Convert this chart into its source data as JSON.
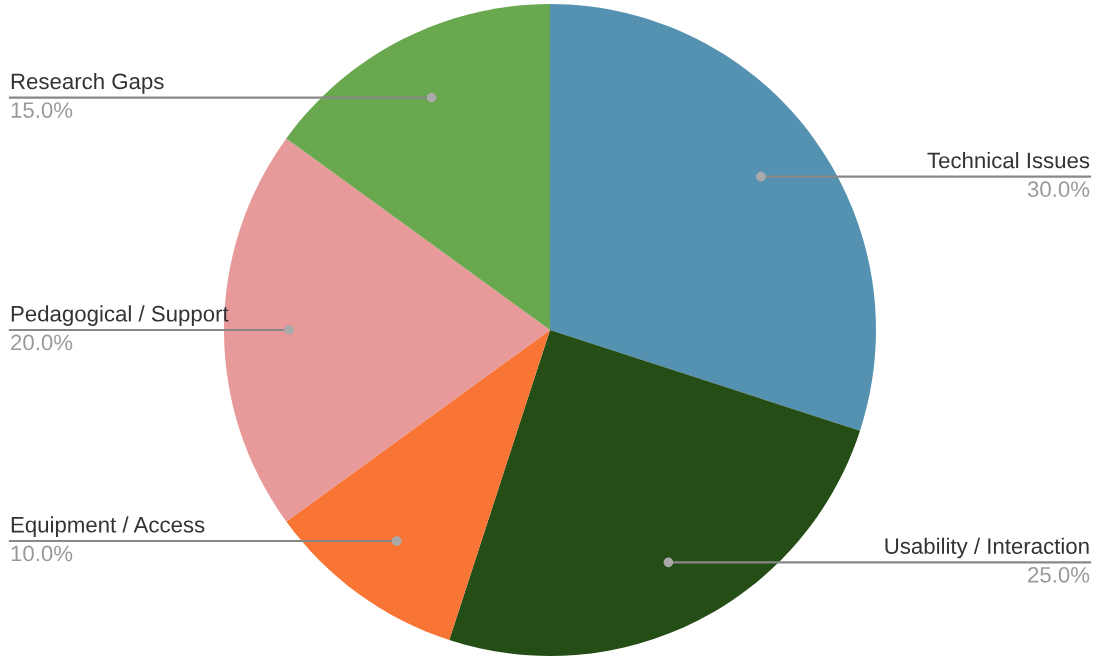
{
  "chart_data": {
    "type": "pie",
    "categories": [
      "Technical Issues",
      "Usability / Interaction",
      "Equipment / Access",
      "Pedagogical / Support",
      "Research Gaps"
    ],
    "values": [
      30,
      25,
      10,
      20,
      15
    ],
    "value_labels": [
      "30.0%",
      "25.0%",
      "10.0%",
      "20.0%",
      "15.0%"
    ],
    "colors": [
      "#5591b0",
      "#254d16",
      "#f97535",
      "#e89a9a",
      "#6aa84f"
    ],
    "legend": false
  }
}
